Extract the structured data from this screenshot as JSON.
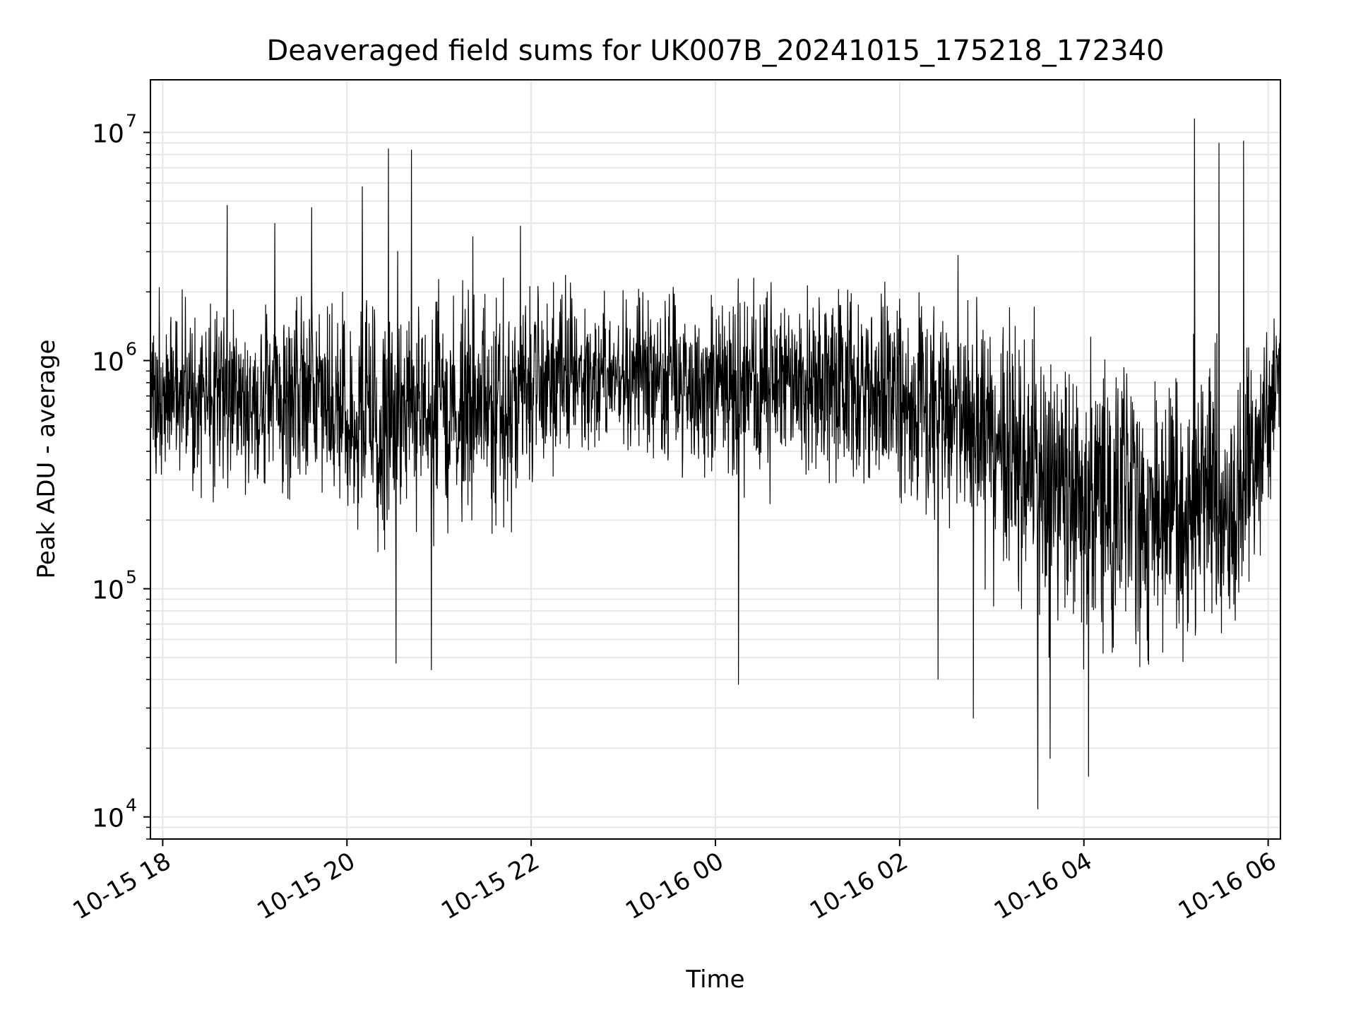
{
  "chart_data": {
    "type": "line",
    "title": "Deaveraged field sums for UK007B_20241015_175218_172340",
    "xlabel": "Time",
    "ylabel": "Peak ADU - average",
    "x_start": "2024-10-15 17:52",
    "x_end": "2024-10-16 06:08",
    "xlim": [
      "2024-10-15 17:52",
      "2024-10-16 06:08"
    ],
    "x_ticks": [
      "10-15 18",
      "10-15 20",
      "10-15 22",
      "10-16 00",
      "10-16 02",
      "10-16 04",
      "10-16 06"
    ],
    "y_scale": "log",
    "ylim": [
      8000,
      17000000
    ],
    "y_ticks": [
      {
        "base": "10",
        "exp": "4"
      },
      {
        "base": "10",
        "exp": "5"
      },
      {
        "base": "10",
        "exp": "6"
      },
      {
        "base": "10",
        "exp": "7"
      }
    ],
    "grid": true,
    "line_color": "#000000",
    "grid_color": "#e6e6e6",
    "trend": [
      {
        "t": "2024-10-15 17:52",
        "median": 750000,
        "spread": 2.0
      },
      {
        "t": "2024-10-15 18:30",
        "median": 700000,
        "spread": 2.2
      },
      {
        "t": "2024-10-15 19:30",
        "median": 650000,
        "spread": 2.3
      },
      {
        "t": "2024-10-15 20:30",
        "median": 600000,
        "spread": 2.8
      },
      {
        "t": "2024-10-15 21:30",
        "median": 650000,
        "spread": 2.6
      },
      {
        "t": "2024-10-15 22:30",
        "median": 850000,
        "spread": 2.0
      },
      {
        "t": "2024-10-15 23:30",
        "median": 850000,
        "spread": 2.0
      },
      {
        "t": "2024-10-16 00:30",
        "median": 750000,
        "spread": 2.2
      },
      {
        "t": "2024-10-16 01:30",
        "median": 750000,
        "spread": 2.3
      },
      {
        "t": "2024-10-16 02:30",
        "median": 650000,
        "spread": 2.6
      },
      {
        "t": "2024-10-16 03:10",
        "median": 350000,
        "spread": 3.2
      },
      {
        "t": "2024-10-16 04:00",
        "median": 250000,
        "spread": 3.5
      },
      {
        "t": "2024-10-16 05:00",
        "median": 230000,
        "spread": 3.5
      },
      {
        "t": "2024-10-16 05:40",
        "median": 230000,
        "spread": 3.2
      },
      {
        "t": "2024-10-16 06:08",
        "median": 900000,
        "spread": 2.0
      }
    ],
    "peaks": [
      {
        "t": "2024-10-15 20:27",
        "y": 8500000
      },
      {
        "t": "2024-10-15 20:42",
        "y": 8400000
      },
      {
        "t": "2024-10-15 20:10",
        "y": 5800000
      },
      {
        "t": "2024-10-15 18:42",
        "y": 4800000
      },
      {
        "t": "2024-10-15 19:37",
        "y": 4700000
      },
      {
        "t": "2024-10-15 19:13",
        "y": 4000000
      },
      {
        "t": "2024-10-15 21:53",
        "y": 3900000
      },
      {
        "t": "2024-10-15 21:22",
        "y": 3500000
      },
      {
        "t": "2024-10-16 02:38",
        "y": 2900000
      },
      {
        "t": "2024-10-16 05:12",
        "y": 11500000
      },
      {
        "t": "2024-10-16 05:28",
        "y": 9000000
      },
      {
        "t": "2024-10-16 05:44",
        "y": 9200000
      }
    ],
    "troughs": [
      {
        "t": "2024-10-15 20:32",
        "y": 47000
      },
      {
        "t": "2024-10-15 20:55",
        "y": 44000
      },
      {
        "t": "2024-10-16 00:15",
        "y": 38000
      },
      {
        "t": "2024-10-16 03:30",
        "y": 10800
      },
      {
        "t": "2024-10-16 03:38",
        "y": 18000
      },
      {
        "t": "2024-10-16 04:03",
        "y": 15000
      },
      {
        "t": "2024-10-16 02:25",
        "y": 40000
      },
      {
        "t": "2024-10-16 02:48",
        "y": 27000
      }
    ]
  }
}
